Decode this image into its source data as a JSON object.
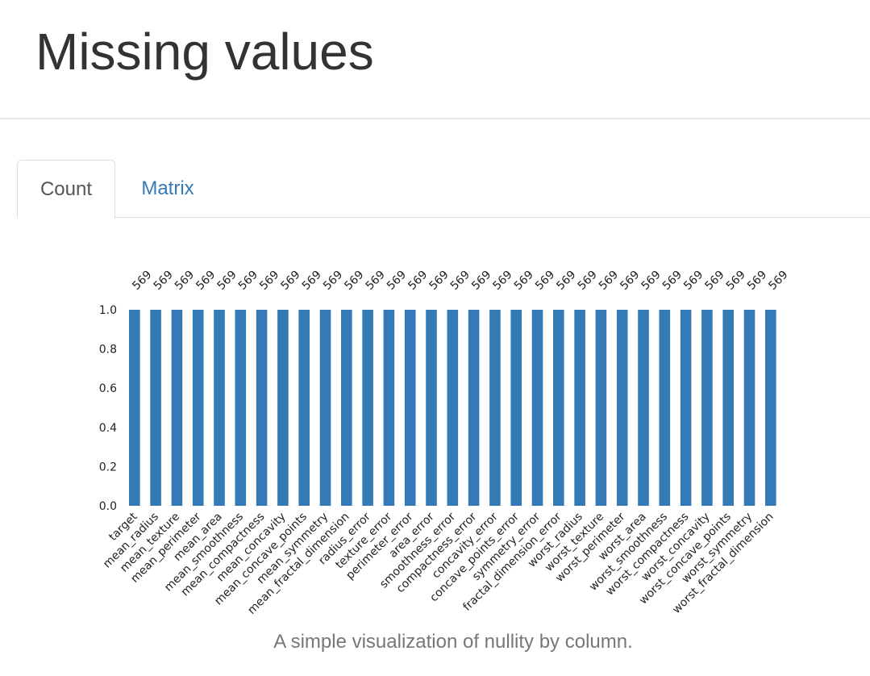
{
  "header": {
    "title": "Missing values"
  },
  "tabs": [
    {
      "label": "Count",
      "active": true
    },
    {
      "label": "Matrix",
      "active": false
    }
  ],
  "caption": "A simple visualization of nullity by column.",
  "colors": {
    "bar": "#337ab7",
    "link": "#337ab7"
  },
  "chart_data": {
    "type": "bar",
    "categories": [
      "target",
      "mean_radius",
      "mean_texture",
      "mean_perimeter",
      "mean_area",
      "mean_smoothness",
      "mean_compactness",
      "mean_concavity",
      "mean_concave_points",
      "mean_symmetry",
      "mean_fractal_dimension",
      "radius_error",
      "texture_error",
      "perimeter_error",
      "area_error",
      "smoothness_error",
      "compactness_error",
      "concavity_error",
      "concave_points_error",
      "symmetry_error",
      "fractal_dimension_error",
      "worst_radius",
      "worst_texture",
      "worst_perimeter",
      "worst_area",
      "worst_smoothness",
      "worst_compactness",
      "worst_concavity",
      "worst_concave_points",
      "worst_symmetry",
      "worst_fractal_dimension"
    ],
    "values": [
      1.0,
      1.0,
      1.0,
      1.0,
      1.0,
      1.0,
      1.0,
      1.0,
      1.0,
      1.0,
      1.0,
      1.0,
      1.0,
      1.0,
      1.0,
      1.0,
      1.0,
      1.0,
      1.0,
      1.0,
      1.0,
      1.0,
      1.0,
      1.0,
      1.0,
      1.0,
      1.0,
      1.0,
      1.0,
      1.0,
      1.0
    ],
    "counts": [
      569,
      569,
      569,
      569,
      569,
      569,
      569,
      569,
      569,
      569,
      569,
      569,
      569,
      569,
      569,
      569,
      569,
      569,
      569,
      569,
      569,
      569,
      569,
      569,
      569,
      569,
      569,
      569,
      569,
      569,
      569
    ],
    "yticks": [
      "0.0",
      "0.2",
      "0.4",
      "0.6",
      "0.8",
      "1.0"
    ],
    "ylim": [
      0,
      1
    ],
    "grid": false
  }
}
